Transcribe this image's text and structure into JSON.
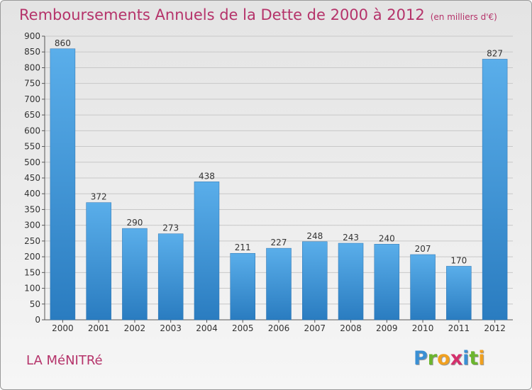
{
  "title": "Remboursements Annuels de la Dette de 2000 à 2012",
  "unit_note": "(en milliers d'€)",
  "commune": "LA MéNITRé",
  "logo": {
    "letters": [
      "P",
      "r",
      "o",
      "x",
      "i",
      "t",
      "i"
    ],
    "colors": [
      "#3a8fd4",
      "#6bb52e",
      "#f0a020",
      "#d4306c",
      "#3a8fd4",
      "#6bb52e",
      "#f0a020"
    ]
  },
  "chart_data": {
    "type": "bar",
    "categories": [
      "2000",
      "2001",
      "2002",
      "2003",
      "2004",
      "2005",
      "2006",
      "2007",
      "2008",
      "2009",
      "2010",
      "2011",
      "2012"
    ],
    "values": [
      860,
      372,
      290,
      273,
      438,
      211,
      227,
      248,
      243,
      240,
      207,
      170,
      827
    ],
    "ylim": [
      0,
      900
    ],
    "yticks": [
      "0",
      "50",
      "100",
      "150",
      "200",
      "250",
      "300",
      "350",
      "400",
      "450",
      "500",
      "550",
      "600",
      "650",
      "700",
      "750",
      "800",
      "850",
      "900"
    ],
    "grid": true,
    "bar_color": "#3b94d8"
  }
}
